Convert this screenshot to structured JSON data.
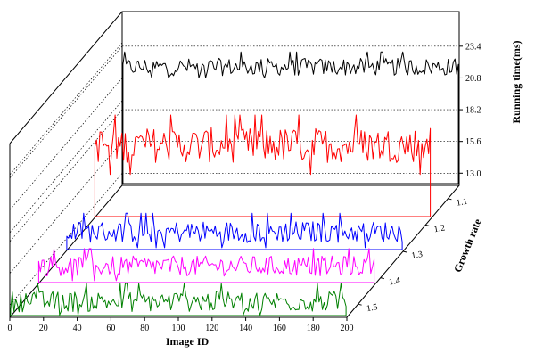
{
  "chart_data": {
    "type": "line",
    "projection": "3d-waterfall",
    "xlabel": "Image ID",
    "zlabel": "Growth rate",
    "ylabel": "Running time(ms)",
    "x_ticks": [
      "0",
      "20",
      "40",
      "60",
      "80",
      "100",
      "120",
      "140",
      "160",
      "180",
      "200"
    ],
    "xlim": [
      0,
      200
    ],
    "y_ticks": [
      "13.0",
      "15.6",
      "18.2",
      "20.8",
      "23.4"
    ],
    "ylim": [
      12,
      24.5
    ],
    "z_ticks": [
      "1.1",
      "1.2",
      "1.3",
      "1.4",
      "1.5"
    ],
    "grid": "dotted",
    "series": [
      {
        "growth_rate": 1.1,
        "color": "#000000",
        "mean": 21.7,
        "min": 20.8,
        "max": 23.4,
        "n": 200
      },
      {
        "growth_rate": 1.2,
        "color": "#ff0000",
        "mean": 18.0,
        "min": 15.6,
        "max": 20.8,
        "n": 200
      },
      {
        "growth_rate": 1.3,
        "color": "#0000ff",
        "mean": 13.6,
        "min": 12.3,
        "max": 15.5,
        "n": 200
      },
      {
        "growth_rate": 1.4,
        "color": "#ff00ff",
        "mean": 13.5,
        "min": 12.3,
        "max": 15.3,
        "n": 200
      },
      {
        "growth_rate": 1.5,
        "color": "#008000",
        "mean": 13.3,
        "min": 12.2,
        "max": 15.3,
        "n": 200
      }
    ]
  }
}
